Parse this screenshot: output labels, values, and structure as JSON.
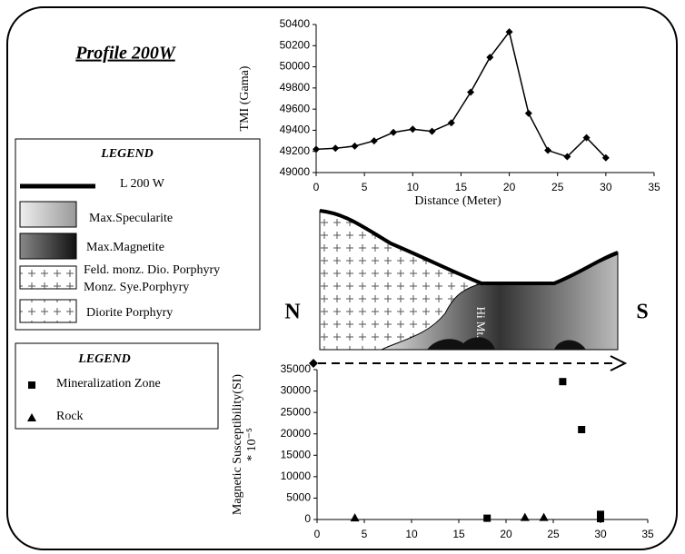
{
  "figure": {
    "title": "Profile 200W"
  },
  "cross_section": {
    "legend_title": "LEGEND",
    "items": [
      "L 200 W",
      "Max.Specularite",
      "Max.Magnetite",
      "Feld. monz. Dio. Porphyry",
      "Monz. Sye.Porphyry",
      "Diorite  Porphyry"
    ],
    "north": "N",
    "south": "S",
    "label": "Hi Mt."
  },
  "chart_data": [
    {
      "type": "line",
      "ylabel": "TMI (Gama)",
      "xlabel": "Distance (Meter)",
      "x": [
        0,
        2,
        4,
        6,
        8,
        10,
        12,
        14,
        16,
        18,
        20,
        22,
        24,
        26,
        28,
        30
      ],
      "values": [
        49220,
        49230,
        49250,
        49300,
        49380,
        49410,
        49390,
        49470,
        49760,
        50090,
        50330,
        49560,
        49210,
        49150,
        49330,
        49140
      ],
      "color": "#000000",
      "xlim": [
        0,
        35
      ],
      "xticks": [
        0,
        5,
        10,
        15,
        20,
        25,
        30,
        35
      ],
      "ylim": [
        49000,
        50400
      ],
      "yticks": [
        49000,
        49200,
        49400,
        49600,
        49800,
        50000,
        50200,
        50400
      ]
    },
    {
      "type": "scatter",
      "legend_title": "LEGEND",
      "ylabel": [
        "Magnetic Susceptibility(SI)",
        "* 10⁻⁵"
      ],
      "series": [
        {
          "name": "Mineralization Zone",
          "color": "#000000",
          "marker": "square",
          "x": [
            18,
            26,
            28,
            30,
            30
          ],
          "values": [
            300,
            32200,
            21000,
            1200,
            200
          ]
        },
        {
          "name": "Rock",
          "color": "#000000",
          "marker": "triangle",
          "x": [
            4,
            22,
            24
          ],
          "values": [
            400,
            500,
            500
          ]
        }
      ],
      "xlim": [
        0,
        35
      ],
      "xticks": [
        0,
        5,
        10,
        15,
        20,
        25,
        30,
        35
      ],
      "ylim": [
        0,
        35000
      ],
      "yticks": [
        0,
        5000,
        10000,
        15000,
        20000,
        25000,
        30000,
        35000
      ]
    }
  ]
}
